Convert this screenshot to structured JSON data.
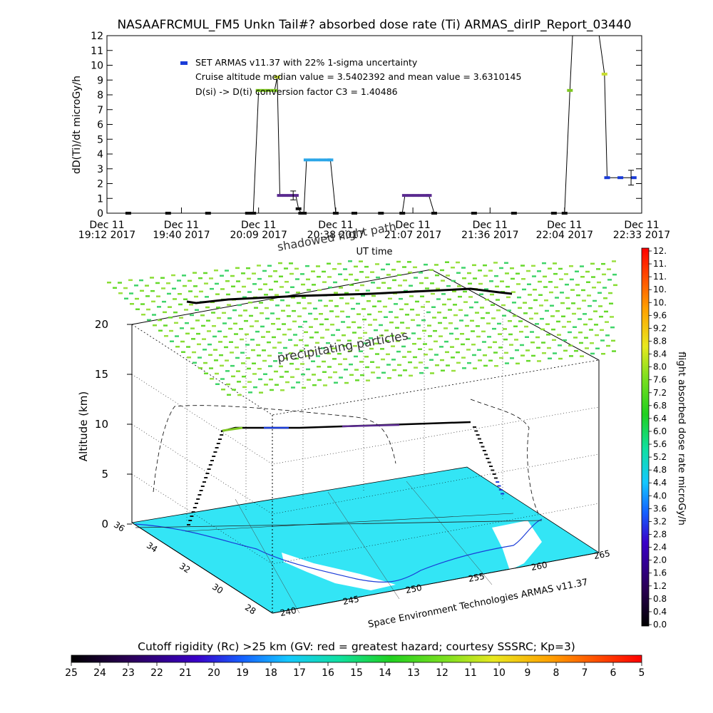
{
  "chart_data": [
    {
      "type": "line",
      "title": "NASAAFRCMUL_FM5 Unkn Tail#? absorbed dose rate (Ti) ARMAS_dirIP_Report_03440",
      "xlabel": "UT time",
      "ylabel": "dD(Ti)/dt microGy/h",
      "ylim": [
        0,
        12
      ],
      "yticks": [
        "0",
        "1",
        "2",
        "3",
        "4",
        "5",
        "6",
        "7",
        "8",
        "9",
        "10",
        "11",
        "12"
      ],
      "xlim_minutes": [
        1152,
        1353
      ],
      "xticks": [
        {
          "line1": "Dec 11",
          "line2": "19:12 2017",
          "minute": 1152
        },
        {
          "line1": "Dec 11",
          "line2": "19:40 2017",
          "minute": 1180
        },
        {
          "line1": "Dec 11",
          "line2": "20:09 2017",
          "minute": 1209
        },
        {
          "line1": "Dec 11",
          "line2": "20:38 2017",
          "minute": 1238
        },
        {
          "line1": "Dec 11",
          "line2": "21:07 2017",
          "minute": 1267
        },
        {
          "line1": "Dec 11",
          "line2": "21:36 2017",
          "minute": 1296
        },
        {
          "line1": "Dec 11",
          "line2": "22:04 2017",
          "minute": 1324
        },
        {
          "line1": "Dec 11",
          "line2": "22:33 2017",
          "minute": 1353
        }
      ],
      "legend": [
        "SET ARMAS v11.37 with 22% 1-sigma uncertainty",
        "Cruise altitude median value = 3.5402392 and mean value = 3.6310145",
        "D(si) -> D(ti) conversion factor C3 = 1.40486"
      ],
      "legend_marker_color": "#1a3cd8",
      "series": [
        {
          "points": [
            [
              1160,
              0
            ],
            [
              1175,
              0
            ],
            [
              1190,
              0
            ],
            [
              1205,
              0
            ],
            [
              1207,
              0
            ],
            [
              1209,
              8.3
            ],
            [
              1211,
              8.3
            ],
            [
              1213,
              8.3
            ],
            [
              1215,
              8.3
            ],
            [
              1216,
              9.2
            ],
            [
              1217,
              1.2
            ],
            [
              1219,
              1.2
            ],
            [
              1221,
              1.2
            ],
            [
              1223,
              1.2
            ],
            [
              1224,
              0.3
            ],
            [
              1225,
              0
            ],
            [
              1226,
              0
            ],
            [
              1227,
              3.6
            ],
            [
              1229,
              3.6
            ],
            [
              1231,
              3.6
            ],
            [
              1233,
              3.6
            ],
            [
              1235,
              3.6
            ],
            [
              1236,
              3.6
            ],
            [
              1238,
              0
            ],
            [
              1245,
              0
            ],
            [
              1255,
              0
            ],
            [
              1263,
              0
            ],
            [
              1264,
              1.2
            ],
            [
              1266,
              1.2
            ],
            [
              1268,
              1.2
            ],
            [
              1270,
              1.2
            ],
            [
              1272,
              1.2
            ],
            [
              1273,
              1.2
            ],
            [
              1275,
              0
            ],
            [
              1290,
              0
            ],
            [
              1305,
              0
            ],
            [
              1320,
              0
            ],
            [
              1324,
              0
            ],
            [
              1326,
              8.3
            ],
            [
              1327,
              12
            ],
            [
              1337,
              12
            ],
            [
              1339,
              9.4
            ],
            [
              1340,
              2.4
            ],
            [
              1345,
              2.4
            ],
            [
              1350,
              2.4
            ]
          ]
        }
      ],
      "error_bars": [
        [
          1222,
          1.2,
          0.3
        ],
        [
          1349,
          2.4,
          0.5
        ]
      ]
    },
    {
      "type": "scatter",
      "zlabel": "Altitude (km)",
      "zticks": [
        "0",
        "5",
        "10",
        "15",
        "20"
      ],
      "lon_ticks": [
        "240",
        "245",
        "250",
        "255",
        "260",
        "265"
      ],
      "lat_ticks": [
        "36",
        "34",
        "32",
        "30",
        "28"
      ],
      "annotations": [
        "shadowed flight path",
        "precipitating particles"
      ],
      "footer": "Space Environment Technologies ARMAS v11.37",
      "dose_colorbar": {
        "label": "flight absorbed dose rate microGy/h",
        "ticks": [
          "0.0",
          "0.4",
          "0.8",
          "1.2",
          "1.6",
          "2.0",
          "2.4",
          "2.8",
          "3.2",
          "3.6",
          "4.0",
          "4.4",
          "4.8",
          "5.2",
          "5.6",
          "6.0",
          "6.4",
          "6.8",
          "7.2",
          "7.6",
          "8.0",
          "8.4",
          "8.8",
          "9.2",
          "9.6",
          "10.",
          "10.",
          "11.",
          "11.",
          "12."
        ]
      },
      "rigidity_colorbar": {
        "label": "Cutoff rigidity (Rc) >25 km (GV: red = greatest hazard; courtesy SSSRC; Kp=3)",
        "ticks": [
          "25",
          "24",
          "23",
          "22",
          "21",
          "20",
          "19",
          "18",
          "17",
          "16",
          "15",
          "14",
          "13",
          "12",
          "11",
          "10",
          "9",
          "8",
          "7",
          "6",
          "5"
        ]
      }
    }
  ],
  "colors": {
    "map_fill": "#33e5f5",
    "particles": "#88dd33",
    "low_dose": "#101010",
    "accent_blue": "#1a3cd8"
  }
}
